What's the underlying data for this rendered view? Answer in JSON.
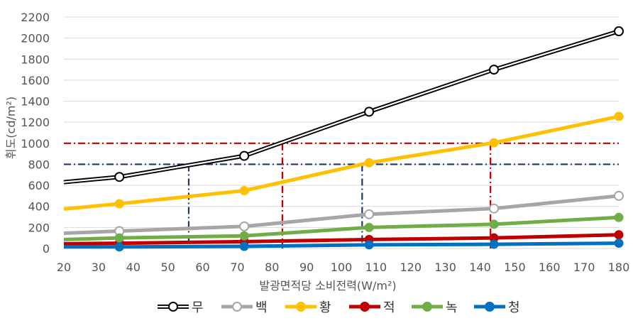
{
  "chart_data": {
    "type": "line",
    "title": "",
    "xlabel": "발광면적당 소비전력(W/m²)",
    "ylabel": "휘도(cd/m²)",
    "xlim": [
      20,
      180
    ],
    "ylim": [
      0,
      2200
    ],
    "xticks": [
      20,
      30,
      40,
      50,
      60,
      70,
      80,
      90,
      100,
      110,
      120,
      130,
      140,
      150,
      160,
      170,
      180
    ],
    "yticks": [
      0,
      200,
      400,
      600,
      800,
      1000,
      1200,
      1400,
      1600,
      1800,
      2000,
      2200
    ],
    "grid": "horizontal",
    "legend_position": "bottom",
    "series": [
      {
        "name": "무",
        "color": "#000000",
        "style": "double-line-hollow-marker",
        "x": [
          20,
          36,
          72,
          108,
          144,
          180
        ],
        "y": [
          630,
          680,
          880,
          1300,
          1700,
          2065
        ],
        "markers": [
          false,
          true,
          true,
          true,
          true,
          true
        ]
      },
      {
        "name": "백",
        "color": "#A6A6A6",
        "style": "solid-hollow-marker",
        "x": [
          20,
          36,
          72,
          108,
          144,
          180
        ],
        "y": [
          145,
          165,
          210,
          325,
          380,
          500
        ],
        "markers": [
          false,
          true,
          true,
          true,
          true,
          true
        ]
      },
      {
        "name": "황",
        "color": "#FFC000",
        "style": "solid-filled-marker",
        "x": [
          20,
          36,
          72,
          108,
          144,
          180
        ],
        "y": [
          375,
          425,
          550,
          815,
          1005,
          1255
        ],
        "markers": [
          false,
          true,
          true,
          true,
          true,
          true
        ]
      },
      {
        "name": "적",
        "color": "#C00000",
        "style": "solid-filled-marker",
        "x": [
          20,
          36,
          72,
          108,
          144,
          180
        ],
        "y": [
          45,
          50,
          65,
          85,
          100,
          130
        ],
        "markers": [
          false,
          true,
          true,
          true,
          true,
          true
        ]
      },
      {
        "name": "녹",
        "color": "#70AD47",
        "style": "solid-filled-marker",
        "x": [
          20,
          36,
          72,
          108,
          144,
          180
        ],
        "y": [
          85,
          100,
          120,
          200,
          230,
          295
        ],
        "markers": [
          false,
          true,
          true,
          true,
          true,
          true
        ]
      },
      {
        "name": "청",
        "color": "#0070C0",
        "style": "solid-filled-marker",
        "x": [
          20,
          36,
          72,
          108,
          144,
          180
        ],
        "y": [
          15,
          15,
          20,
          35,
          40,
          50
        ],
        "markers": [
          false,
          true,
          true,
          true,
          true,
          true
        ]
      }
    ],
    "reference_lines": [
      {
        "orientation": "horizontal",
        "value": 1000,
        "color": "#C00000",
        "style": "dash-dot"
      },
      {
        "orientation": "horizontal",
        "value": 800,
        "color": "#1F3864",
        "style": "dash-dot"
      },
      {
        "orientation": "vertical",
        "value": 56,
        "ymax": 800,
        "color": "#1F3864",
        "style": "dash-dot"
      },
      {
        "orientation": "vertical",
        "value": 83,
        "ymax": 1000,
        "color": "#C00000",
        "style": "dash-dot"
      },
      {
        "orientation": "vertical",
        "value": 106,
        "ymax": 800,
        "color": "#1F3864",
        "style": "dash-dot"
      },
      {
        "orientation": "vertical",
        "value": 143,
        "ymax": 1000,
        "color": "#C00000",
        "style": "dash-dot"
      }
    ]
  }
}
